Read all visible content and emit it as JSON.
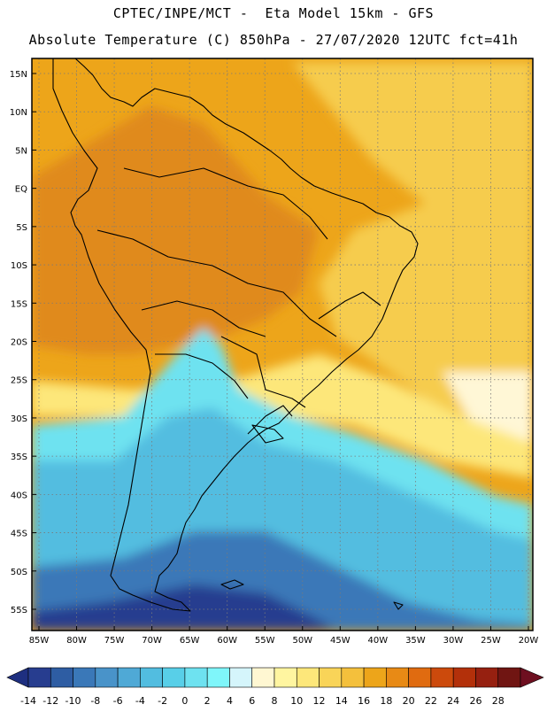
{
  "title_line1": "CPTEC/INPE/MCT -  Eta Model 15km - GFS",
  "title_line2": "Absolute Temperature (C) 850hPa - 27/07/2020 12UTC fct=41h",
  "lat_labels": [
    "15N",
    "10N",
    "5N",
    "EQ",
    "5S",
    "10S",
    "15S",
    "20S",
    "25S",
    "30S",
    "35S",
    "40S",
    "45S",
    "50S",
    "55S"
  ],
  "lon_labels": [
    "85W",
    "80W",
    "75W",
    "70W",
    "65W",
    "60W",
    "55W",
    "50W",
    "45W",
    "40W",
    "35W",
    "30W",
    "25W",
    "20W"
  ],
  "colorbar": {
    "labels": [
      "-14",
      "-12",
      "-10",
      "-8",
      "-6",
      "-4",
      "-2",
      "0",
      "2",
      "4",
      "6",
      "8",
      "10",
      "12",
      "14",
      "16",
      "18",
      "20",
      "22",
      "24",
      "26",
      "28"
    ],
    "colors": [
      "#273d8f",
      "#2e5da3",
      "#3a78b8",
      "#4993c9",
      "#4fa9d6",
      "#52bde0",
      "#58cfe8",
      "#6ee2f0",
      "#7ff6fa",
      "#d5f5fb",
      "#fff7d2",
      "#fff5a0",
      "#fde77a",
      "#f9d458",
      "#f4c03c",
      "#eda51a",
      "#e88a15",
      "#e06b10",
      "#cc4a0c",
      "#b3300a",
      "#962010",
      "#701512"
    ],
    "left_arrow_color": "#1e2f80",
    "right_arrow_color": "#6e0f20"
  },
  "palette": {
    "warm_orange": "#eda51a",
    "hot_orange": "#e08a1a",
    "yellow": "#f6cc4e",
    "light_yellow": "#fde77a",
    "cream": "#fff7d6",
    "pale_cyan": "#d5f5fb",
    "cyan": "#6ee2f0",
    "mid_blue": "#52bde0",
    "deep_blue": "#3a78b8",
    "navy": "#273d8f"
  }
}
